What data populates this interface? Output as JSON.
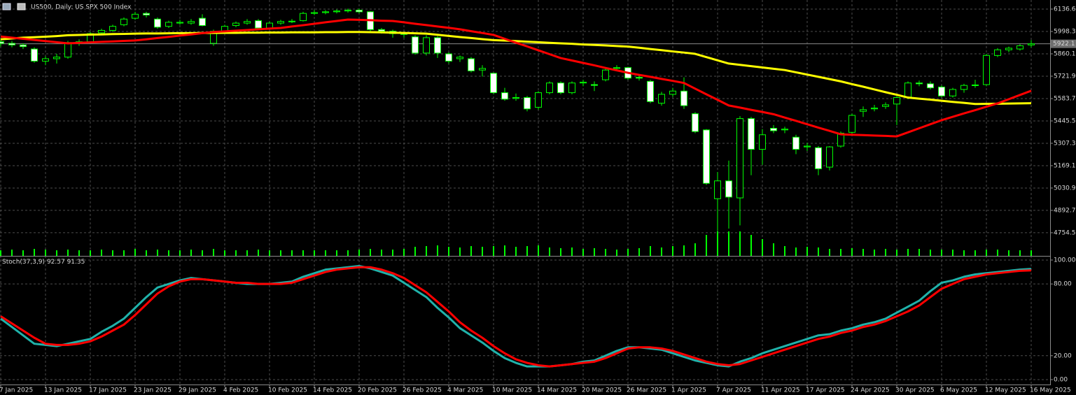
{
  "chart_data": [
    {
      "type": "candlestick",
      "title": "US500, Daily:  US SPX 500 Index",
      "categories": [
        "7 Jan 2025",
        null,
        null,
        null,
        "13 Jan 2025",
        null,
        null,
        null,
        "17 Jan 2025",
        null,
        null,
        null,
        "23 Jan 2025",
        null,
        null,
        null,
        "29 Jan 2025",
        null,
        null,
        null,
        "4 Feb 2025",
        null,
        null,
        null,
        "10 Feb 2025",
        null,
        null,
        null,
        "14 Feb 2025",
        null,
        null,
        null,
        "20 Feb 2025",
        null,
        null,
        null,
        "26 Feb 2025",
        null,
        null,
        null,
        "4 Mar 2025",
        null,
        null,
        null,
        "10 Mar 2025",
        null,
        null,
        null,
        "14 Mar 2025",
        null,
        null,
        null,
        "20 Mar 2025",
        null,
        null,
        null,
        "26 Mar 2025",
        null,
        null,
        null,
        "1 Apr 2025",
        null,
        null,
        null,
        "7 Apr 2025",
        null,
        null,
        null,
        "11 Apr 2025",
        null,
        null,
        null,
        "17 Apr 2025",
        null,
        null,
        null,
        "24 Apr 2025",
        null,
        null,
        null,
        "30 Apr 2025",
        null,
        null,
        null,
        "6 May 2025",
        null,
        null,
        null,
        "12 May 2025",
        null,
        null,
        null,
        "16 May 2025"
      ],
      "open": [
        5935,
        5925,
        5915,
        5890,
        5815,
        5830,
        5840,
        5925,
        5935,
        5990,
        6005,
        6040,
        6080,
        6110,
        6075,
        6030,
        6050,
        6050,
        6080,
        5925,
        6000,
        6035,
        6050,
        6065,
        6020,
        6050,
        6060,
        6065,
        6110,
        6115,
        6120,
        6125,
        6130,
        6120,
        6010,
        6000,
        5985,
        5965,
        5865,
        5960,
        5860,
        5830,
        5830,
        5760,
        5740,
        5620,
        5585,
        5590,
        5530,
        5620,
        5680,
        5620,
        5680,
        5670,
        5700,
        5770,
        5775,
        5715,
        5690,
        5555,
        5610,
        5630,
        5490,
        5390,
        4965,
        5075,
        4970,
        5460,
        5270,
        5400,
        5390,
        5345,
        5285,
        5280,
        5160,
        5290,
        5375,
        5505,
        5520,
        5535,
        5550,
        5590,
        5680,
        5675,
        5655,
        5600,
        5640,
        5665,
        5670,
        5850,
        5885,
        5890,
        5915
      ],
      "high": [
        5950,
        5940,
        5925,
        5900,
        5845,
        5860,
        5940,
        5950,
        5995,
        6015,
        6040,
        6085,
        6120,
        6120,
        6085,
        6065,
        6070,
        6075,
        6105,
        6010,
        6040,
        6060,
        6075,
        6075,
        6060,
        6070,
        6075,
        6120,
        6130,
        6130,
        6135,
        6140,
        6140,
        6125,
        6020,
        6010,
        5995,
        5975,
        5975,
        5970,
        5870,
        5850,
        5840,
        5790,
        5745,
        5650,
        5615,
        5600,
        5630,
        5690,
        5690,
        5690,
        5700,
        5690,
        5770,
        5790,
        5780,
        5725,
        5700,
        5625,
        5650,
        5715,
        5500,
        5395,
        5130,
        5200,
        5475,
        5470,
        5395,
        5420,
        5410,
        5360,
        5310,
        5290,
        5290,
        5380,
        5490,
        5535,
        5545,
        5560,
        5600,
        5690,
        5695,
        5690,
        5665,
        5650,
        5675,
        5700,
        5860,
        5895,
        5905,
        5920,
        5945
      ],
      "low": [
        5905,
        5900,
        5890,
        5805,
        5790,
        5800,
        5830,
        5910,
        5925,
        5980,
        5995,
        6030,
        6070,
        6085,
        6015,
        6020,
        6040,
        6040,
        6030,
        5910,
        5990,
        6025,
        6040,
        6010,
        6010,
        6040,
        6050,
        6060,
        6100,
        6105,
        6110,
        6115,
        6110,
        6000,
        5985,
        5960,
        5960,
        5855,
        5850,
        5835,
        5800,
        5810,
        5745,
        5720,
        5610,
        5570,
        5570,
        5505,
        5515,
        5610,
        5610,
        5610,
        5660,
        5630,
        5690,
        5760,
        5700,
        5695,
        5555,
        5540,
        5595,
        5520,
        5370,
        5050,
        4765,
        4780,
        4800,
        5110,
        5175,
        5370,
        5370,
        5240,
        5260,
        5110,
        5140,
        5280,
        5360,
        5470,
        5505,
        5520,
        5420,
        5580,
        5660,
        5640,
        5590,
        5590,
        5620,
        5650,
        5660,
        5840,
        5870,
        5880,
        5900
      ],
      "close": [
        5925,
        5915,
        5905,
        5815,
        5830,
        5840,
        5930,
        5935,
        5985,
        6005,
        6030,
        6075,
        6105,
        6100,
        6025,
        6055,
        6055,
        6060,
        6035,
        6000,
        6030,
        6050,
        6060,
        6020,
        6050,
        6060,
        6062,
        6110,
        6115,
        6120,
        6125,
        6130,
        6120,
        6010,
        6000,
        5985,
        5980,
        5865,
        5960,
        5865,
        5815,
        5840,
        5755,
        5770,
        5620,
        5580,
        5590,
        5520,
        5620,
        5680,
        5620,
        5680,
        5685,
        5665,
        5760,
        5775,
        5710,
        5710,
        5565,
        5610,
        5630,
        5540,
        5380,
        5060,
        5075,
        4975,
        5460,
        5270,
        5360,
        5385,
        5395,
        5270,
        5290,
        5150,
        5285,
        5370,
        5480,
        5515,
        5525,
        5545,
        5590,
        5680,
        5675,
        5650,
        5600,
        5640,
        5665,
        5668,
        5850,
        5885,
        5895,
        5910,
        5922.1
      ],
      "up_color": "#000000",
      "down_color": "#ffffff",
      "wick_color": "#00ff00",
      "bid_color": "#8a8a8a",
      "lines": [
        {
          "color": "#ffff00",
          "values": [
            5950,
            5955,
            5960,
            5963,
            5966,
            5970,
            5975,
            5977,
            5979,
            5980,
            5982,
            5983,
            5985,
            5986,
            5986,
            5987,
            5988,
            5988,
            5989,
            5989,
            5990,
            5990,
            5991,
            5991,
            5992,
            5992,
            5993,
            5993,
            5993,
            5994,
            5994,
            5995,
            5995,
            5994,
            5993,
            5991,
            5989,
            5987,
            5985,
            5978,
            5971,
            5964,
            5958,
            5951,
            5945,
            5942,
            5939,
            5935,
            5932,
            5928,
            5925,
            5922,
            5918,
            5915,
            5912,
            5908,
            5905,
            5898,
            5890,
            5883,
            5875,
            5868,
            5860,
            5840,
            5820,
            5800,
            5792,
            5784,
            5776,
            5768,
            5760,
            5746,
            5732,
            5718,
            5704,
            5690,
            5673,
            5657,
            5640,
            5623,
            5607,
            5590,
            5583,
            5577,
            5570,
            5563,
            5557,
            5550,
            5551,
            5552,
            5553,
            5554,
            5555
          ]
        },
        {
          "color": "#ff0000",
          "values": [
            5967,
            5960,
            5953,
            5946,
            5939,
            5932,
            5925,
            5928,
            5931,
            5934,
            5937,
            5940,
            5943,
            5950,
            5958,
            5965,
            5973,
            5980,
            5988,
            5995,
            5999,
            6003,
            6007,
            6012,
            6016,
            6020,
            6029,
            6037,
            6046,
            6055,
            6063,
            6072,
            6070,
            6068,
            6065,
            6063,
            6055,
            6046,
            6038,
            6029,
            6021,
            6012,
            6000,
            5989,
            5977,
            5953,
            5929,
            5906,
            5882,
            5858,
            5834,
            5819,
            5804,
            5789,
            5773,
            5758,
            5743,
            5730,
            5718,
            5705,
            5693,
            5680,
            5645,
            5610,
            5576,
            5541,
            5528,
            5514,
            5501,
            5487,
            5466,
            5446,
            5425,
            5404,
            5384,
            5363,
            5360,
            5358,
            5355,
            5353,
            5350,
            5375,
            5400,
            5425,
            5450,
            5471,
            5492,
            5512,
            5533,
            5554,
            5580,
            5606,
            5632
          ]
        }
      ],
      "volume": {
        "color": "#00ff00",
        "axis": "y2",
        "values": [
          8,
          9,
          8,
          10,
          9,
          8,
          9,
          8,
          8,
          9,
          8,
          8,
          10,
          8,
          9,
          8,
          8,
          9,
          8,
          10,
          8,
          8,
          8,
          9,
          8,
          8,
          8,
          8,
          8,
          8,
          8,
          8,
          9,
          10,
          9,
          9,
          10,
          13,
          14,
          15,
          13,
          12,
          14,
          13,
          14,
          15,
          13,
          14,
          15,
          12,
          11,
          12,
          10,
          11,
          10,
          9,
          10,
          11,
          14,
          12,
          14,
          15,
          18,
          30,
          35,
          35,
          35,
          30,
          24,
          18,
          14,
          12,
          13,
          12,
          10,
          10,
          11,
          10,
          9,
          10,
          9,
          10,
          10,
          9,
          9,
          9,
          8,
          8,
          9,
          9,
          8,
          8,
          8
        ]
      },
      "ylim": [
        4611.6,
        6192.8
      ],
      "y2lim": [
        0,
        366
      ],
      "yticks": [
        6136.6,
        5998.3,
        5860.1,
        5721.9,
        5583.7,
        5445.5,
        5307.3,
        5169.1,
        5030.9,
        4892.7,
        4754.5
      ],
      "grid": true
    },
    {
      "type": "line",
      "title": "Stoch(37,3,9)",
      "series": [
        {
          "color": "#20b2aa",
          "values": [
            51,
            44,
            37,
            30,
            29,
            28,
            30,
            32,
            34,
            40,
            45,
            51,
            60,
            69,
            77,
            80,
            83,
            85,
            84,
            83,
            82,
            81,
            80,
            80,
            80,
            81,
            82,
            86,
            89,
            92,
            93,
            94,
            95,
            93,
            90,
            87,
            81,
            75,
            69,
            60,
            52,
            43,
            37,
            31,
            24,
            18,
            14,
            11,
            11,
            11,
            12,
            13,
            15,
            16,
            20,
            24,
            27,
            27,
            26,
            25,
            22,
            19,
            16,
            14,
            12,
            11,
            15,
            18,
            22,
            25,
            28,
            31,
            34,
            37,
            38,
            41,
            43,
            46,
            48,
            51,
            56,
            61,
            66,
            74,
            81,
            83,
            86,
            88,
            89,
            90,
            91,
            92,
            92.57
          ]
        },
        {
          "color": "#ff0000",
          "values": [
            53,
            47,
            41,
            35,
            30,
            29,
            29,
            30,
            32,
            36,
            41,
            46,
            54,
            63,
            72,
            78,
            82,
            84,
            84,
            83,
            82,
            81,
            81,
            80,
            80,
            80,
            81,
            84,
            87,
            90,
            92,
            93,
            94,
            94,
            92,
            89,
            85,
            79,
            73,
            65,
            57,
            48,
            41,
            35,
            28,
            22,
            17,
            14,
            12,
            11,
            12,
            13,
            14,
            15,
            18,
            22,
            26,
            27,
            27,
            26,
            24,
            21,
            18,
            15,
            13,
            12,
            13,
            16,
            19,
            22,
            25,
            28,
            31,
            34,
            36,
            39,
            41,
            44,
            46,
            49,
            53,
            57,
            62,
            69,
            76,
            80,
            84,
            86,
            88,
            89,
            90,
            91,
            91.35
          ]
        }
      ],
      "ylim": [
        -4.1,
        102.9
      ],
      "yticks": [
        {
          "value": 100,
          "label": "100.00"
        },
        {
          "value": 80,
          "label": "80.00"
        },
        {
          "value": 20,
          "label": "20.00"
        },
        {
          "value": 0,
          "label": "0.00"
        }
      ],
      "grid": true
    }
  ]
}
